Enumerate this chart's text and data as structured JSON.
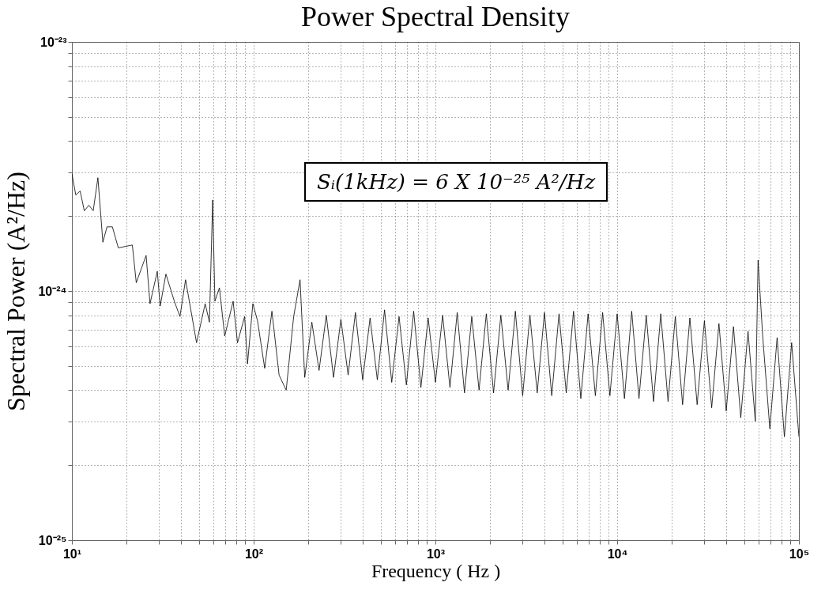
{
  "chart_data": {
    "type": "line",
    "title": "Power Spectral Density",
    "xlabel": "Frequency ( Hz )",
    "ylabel": "Spectral Power (A²/Hz)",
    "annotations": [
      "Sᵢ(1kHz) = 6 X 10⁻²⁵ A²/Hz"
    ],
    "log": "xy",
    "grid": true,
    "color": "#000000",
    "xlim": [
      10,
      100000
    ],
    "ylim": [
      1e-25,
      1e-23
    ],
    "xticks": [
      {
        "value": 10,
        "label": "10¹"
      },
      {
        "value": 20,
        "label": null
      },
      {
        "value": 30,
        "label": null
      },
      {
        "value": 40,
        "label": null
      },
      {
        "value": 50,
        "label": null
      },
      {
        "value": 60,
        "label": null
      },
      {
        "value": 70,
        "label": null
      },
      {
        "value": 80,
        "label": null
      },
      {
        "value": 90,
        "label": null
      },
      {
        "value": 100,
        "label": "10²"
      },
      {
        "value": 200,
        "label": null
      },
      {
        "value": 300,
        "label": null
      },
      {
        "value": 400,
        "label": null
      },
      {
        "value": 500,
        "label": null
      },
      {
        "value": 600,
        "label": null
      },
      {
        "value": 700,
        "label": null
      },
      {
        "value": 800,
        "label": null
      },
      {
        "value": 900,
        "label": null
      },
      {
        "value": 1000,
        "label": "10³"
      },
      {
        "value": 2000,
        "label": null
      },
      {
        "value": 3000,
        "label": null
      },
      {
        "value": 4000,
        "label": null
      },
      {
        "value": 5000,
        "label": null
      },
      {
        "value": 6000,
        "label": null
      },
      {
        "value": 7000,
        "label": null
      },
      {
        "value": 8000,
        "label": null
      },
      {
        "value": 9000,
        "label": null
      },
      {
        "value": 10000,
        "label": "10⁴"
      },
      {
        "value": 20000,
        "label": null
      },
      {
        "value": 30000,
        "label": null
      },
      {
        "value": 40000,
        "label": null
      },
      {
        "value": 50000,
        "label": null
      },
      {
        "value": 60000,
        "label": null
      },
      {
        "value": 70000,
        "label": null
      },
      {
        "value": 80000,
        "label": null
      },
      {
        "value": 90000,
        "label": null
      },
      {
        "value": 100000,
        "label": "10⁵"
      }
    ],
    "yticks": [
      {
        "value": 1e-25,
        "label": "10⁻²⁵"
      },
      {
        "value": 2e-25,
        "label": null
      },
      {
        "value": 3e-25,
        "label": null
      },
      {
        "value": 4e-25,
        "label": null
      },
      {
        "value": 5e-25,
        "label": null
      },
      {
        "value": 6e-25,
        "label": null
      },
      {
        "value": 7e-25,
        "label": null
      },
      {
        "value": 8e-25,
        "label": null
      },
      {
        "value": 9e-25,
        "label": null
      },
      {
        "value": 1e-24,
        "label": "10⁻²⁴"
      },
      {
        "value": 2e-24,
        "label": null
      },
      {
        "value": 3e-24,
        "label": null
      },
      {
        "value": 4e-24,
        "label": null
      },
      {
        "value": 5e-24,
        "label": null
      },
      {
        "value": 6e-24,
        "label": null
      },
      {
        "value": 7e-24,
        "label": null
      },
      {
        "value": 8e-24,
        "label": null
      },
      {
        "value": 9e-24,
        "label": null
      },
      {
        "value": 1e-23,
        "label": "10⁻²³"
      }
    ],
    "x": [
      10,
      10.5,
      11.1,
      11.7,
      12.4,
      13.1,
      13.9,
      14.8,
      15.6,
      16.7,
      18,
      21.5,
      22.6,
      25.6,
      26.9,
      29.5,
      30.6,
      32.9,
      36.6,
      39.3,
      42.2,
      48.5,
      54.1,
      57.1,
      59.5,
      61.2,
      64.8,
      69.3,
      77.1,
      81.5,
      89.2,
      92.5,
      99,
      105,
      115,
      126,
      138,
      151,
      166,
      180,
      191,
      209,
      229,
      251,
      275,
      302,
      331,
      363,
      398,
      437,
      479,
      525,
      575,
      631,
      692,
      759,
      832,
      912,
      1000,
      1096,
      1202,
      1318,
      1445,
      1585,
      1738,
      1905,
      2089,
      2291,
      2512,
      2754,
      3020,
      3311,
      3631,
      3981,
      4365,
      4786,
      5248,
      5754,
      6310,
      6918,
      7586,
      8318,
      9120,
      10000,
      10965,
      12023,
      13183,
      14454,
      15849,
      17378,
      19055,
      20893,
      22909,
      25119,
      27542,
      30200,
      33113,
      36308,
      39811,
      43652,
      47863,
      52481,
      57544,
      59600,
      63096,
      69183,
      75858,
      83176,
      91201,
      100000
    ],
    "values": [
      2.96e-24,
      2.43e-24,
      2.52e-24,
      2.1e-24,
      2.21e-24,
      2.1e-24,
      2.85e-24,
      1.57e-24,
      1.81e-24,
      1.81e-24,
      1.49e-24,
      1.53e-24,
      1.08e-24,
      1.39e-24,
      8.9e-25,
      1.2e-24,
      8.7e-25,
      1.17e-24,
      9.1e-25,
      7.9e-25,
      1.11e-24,
      6.2e-25,
      8.9e-25,
      7.5e-25,
      2.32e-24,
      9.1e-25,
      1.03e-24,
      6.6e-25,
      9.1e-25,
      6.2e-25,
      7.9e-25,
      5.1e-25,
      8.9e-25,
      7.6e-25,
      4.9e-25,
      8.3e-25,
      4.6e-25,
      4e-25,
      7.9e-25,
      1.11e-24,
      4.5e-25,
      7.5e-25,
      4.8e-25,
      8e-25,
      4.5e-25,
      7.7e-25,
      4.6e-25,
      8.2e-25,
      4.4e-25,
      7.8e-25,
      4.4e-25,
      8.4e-25,
      4.3e-25,
      7.9e-25,
      4.2e-25,
      8.3e-25,
      4.1e-25,
      7.8e-25,
      4.3e-25,
      8e-25,
      4.1e-25,
      8.2e-25,
      3.9e-25,
      7.9e-25,
      4e-25,
      8.1e-25,
      3.9e-25,
      8e-25,
      4e-25,
      8.3e-25,
      3.8e-25,
      8e-25,
      3.9e-25,
      8.2e-25,
      3.8e-25,
      8.1e-25,
      3.9e-25,
      8.3e-25,
      3.7e-25,
      8.1e-25,
      3.8e-25,
      8.2e-25,
      3.8e-25,
      8.1e-25,
      3.7e-25,
      8.3e-25,
      3.7e-25,
      8e-25,
      3.6e-25,
      8.1e-25,
      3.6e-25,
      7.9e-25,
      3.5e-25,
      7.8e-25,
      3.5e-25,
      7.6e-25,
      3.4e-25,
      7.4e-25,
      3.3e-25,
      7.2e-25,
      3.1e-25,
      6.9e-25,
      3e-25,
      1.33e-24,
      6.7e-25,
      2.8e-25,
      6.5e-25,
      2.6e-25,
      6.2e-25,
      2.6e-25
    ]
  }
}
